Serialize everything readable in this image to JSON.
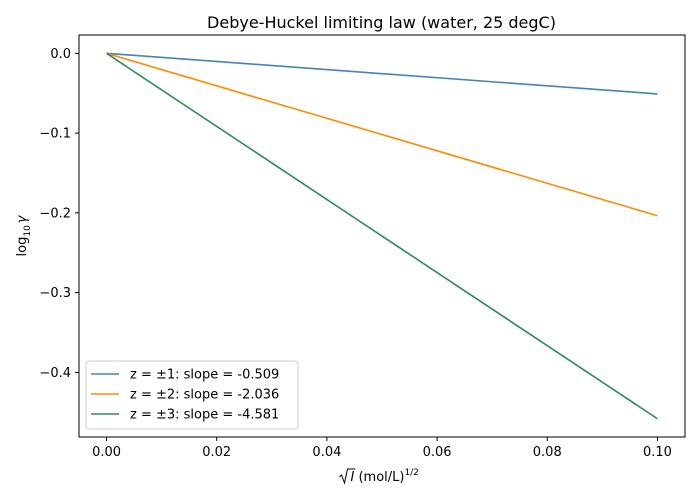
{
  "chart_data": {
    "type": "line",
    "title": "Debye-Huckel limiting law (water, 25 degC)",
    "xlabel": {
      "main": "I",
      "unit": " (mol/L)",
      "exponent": "1/2"
    },
    "ylabel": {
      "main": "log",
      "sub": "10",
      "symbol": "γ"
    },
    "xlim": [
      -0.005,
      0.105
    ],
    "ylim": [
      -0.481,
      0.023
    ],
    "xticks": [
      0.0,
      0.02,
      0.04,
      0.06,
      0.08,
      0.1
    ],
    "xtick_labels": [
      "0.00",
      "0.02",
      "0.04",
      "0.06",
      "0.08",
      "0.10"
    ],
    "yticks": [
      0.0,
      -0.1,
      -0.2,
      -0.3,
      -0.4
    ],
    "ytick_labels": [
      "0.0",
      "−0.1",
      "−0.2",
      "−0.3",
      "−0.4"
    ],
    "grid": false,
    "legend_position": "lower-left",
    "series": [
      {
        "name": "z = ±1: slope = -0.509",
        "color": "#4682b4",
        "x": [
          0.0,
          0.1
        ],
        "y": [
          0.0,
          -0.0509
        ]
      },
      {
        "name": "z = ±2: slope = -2.036",
        "color": "#ff8c00",
        "x": [
          0.0,
          0.1
        ],
        "y": [
          0.0,
          -0.2036
        ]
      },
      {
        "name": "z = ±3: slope = -4.581",
        "color": "#2e8b57",
        "x": [
          0.0,
          0.1
        ],
        "y": [
          0.0,
          -0.4581
        ]
      }
    ]
  }
}
